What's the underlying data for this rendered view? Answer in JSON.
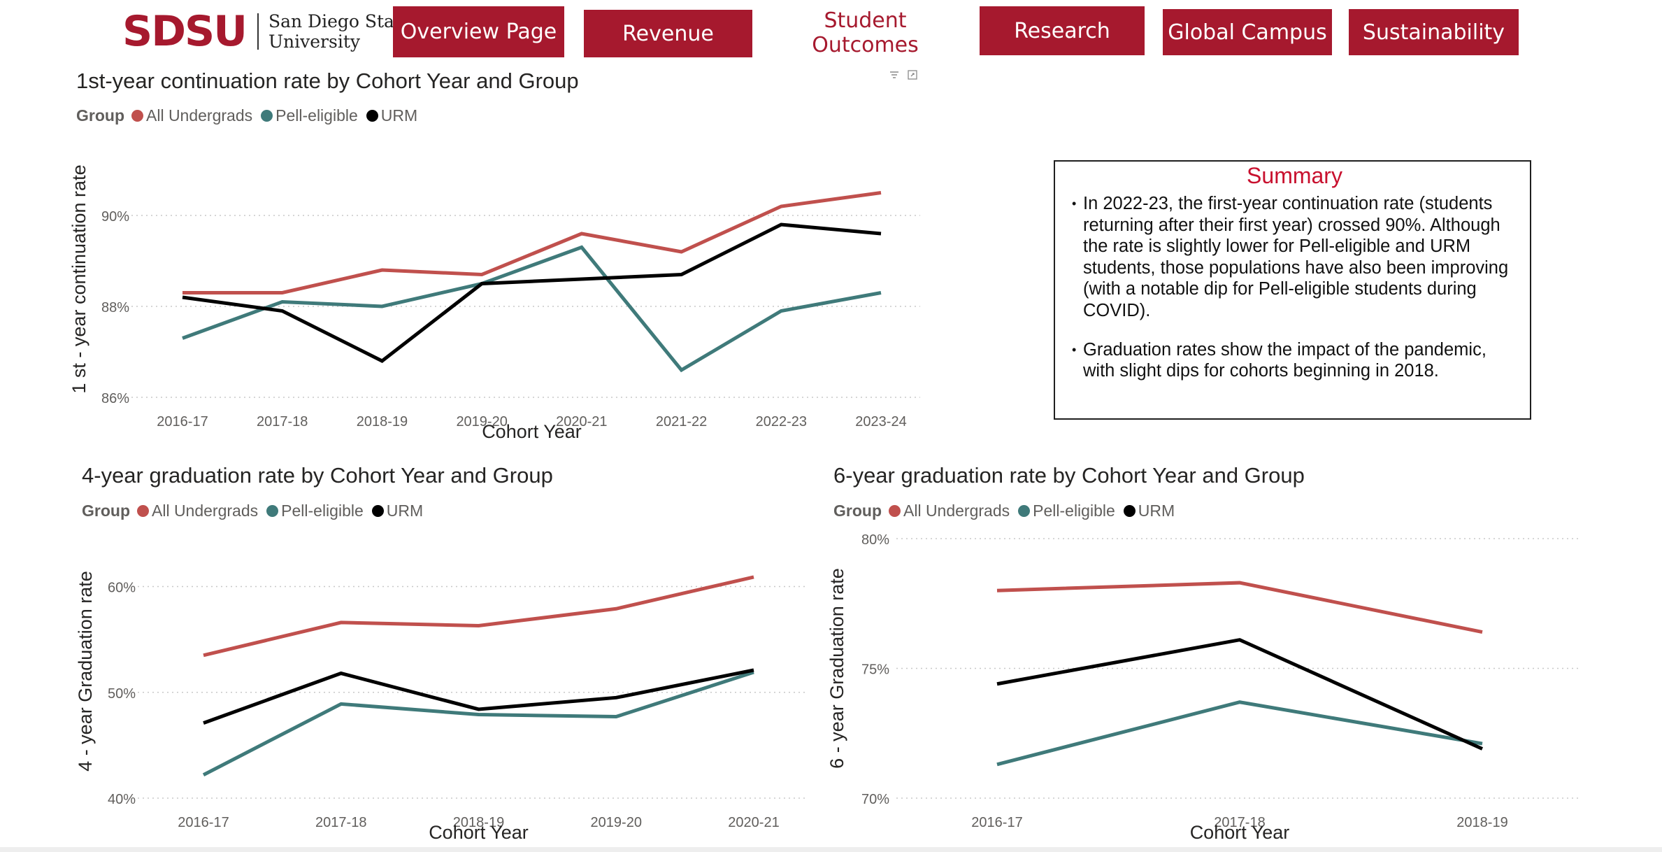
{
  "logo": {
    "mark": "SDSU",
    "line1": "San Diego State",
    "line2": "University"
  },
  "nav": [
    {
      "label": "Overview Page",
      "active": false
    },
    {
      "label": "Revenue",
      "active": false
    },
    {
      "label": "Student Outcomes",
      "active": true
    },
    {
      "label": "Research",
      "active": false
    },
    {
      "label": "Global Campus",
      "active": false
    },
    {
      "label": "Sustainability",
      "active": false
    }
  ],
  "colors": {
    "brand": "#A6192E",
    "all_undergrads": "#C0504D",
    "pell_eligible": "#3F7A7A",
    "urm": "#000000"
  },
  "legend": {
    "title": "Group",
    "items": [
      "All Undergrads",
      "Pell-eligible",
      "URM"
    ]
  },
  "icons": [
    "filter-icon",
    "focus-mode-icon"
  ],
  "summary": {
    "title": "Summary",
    "bullets": [
      "In 2022-23, the first-year continuation rate (students returning after their first year) crossed 90%. Although the rate is slightly lower for Pell-eligible and URM students, those populations have also been improving (with a notable dip for Pell-eligible students during COVID).",
      "Graduation rates show the impact of the pandemic, with slight dips for cohorts beginning in 2018."
    ]
  },
  "chart_data": [
    {
      "type": "line",
      "title": "1st-year continuation rate by Cohort Year and Group",
      "xlabel": "Cohort Year",
      "ylabel": "1 st - year continuation rate",
      "categories": [
        "2016-17",
        "2017-18",
        "2018-19",
        "2019-20",
        "2020-21",
        "2021-22",
        "2022-23",
        "2023-24"
      ],
      "ylim": [
        86,
        91.2
      ],
      "yticks": [
        86,
        88,
        90
      ],
      "tick_suffix": "%",
      "grid": true,
      "legend_position": "top-left",
      "series": [
        {
          "name": "All Undergrads",
          "values": [
            88.3,
            88.3,
            88.8,
            88.7,
            89.6,
            89.2,
            90.2,
            90.5
          ]
        },
        {
          "name": "Pell-eligible",
          "values": [
            87.3,
            88.1,
            88.0,
            88.5,
            89.3,
            86.6,
            87.9,
            88.3
          ]
        },
        {
          "name": "URM",
          "values": [
            88.2,
            87.9,
            86.8,
            88.5,
            88.6,
            88.7,
            89.8,
            89.6
          ]
        }
      ]
    },
    {
      "type": "line",
      "title": "4-year graduation rate by Cohort Year and Group",
      "xlabel": "Cohort Year",
      "ylabel": "4 - year Graduation rate",
      "categories": [
        "2016-17",
        "2017-18",
        "2018-19",
        "2019-20",
        "2020-21"
      ],
      "ylim": [
        40,
        64
      ],
      "yticks": [
        40,
        50,
        60
      ],
      "tick_suffix": "%",
      "grid": true,
      "legend_position": "top-left",
      "series": [
        {
          "name": "All Undergrads",
          "values": [
            53.5,
            56.6,
            56.3,
            57.9,
            60.9
          ]
        },
        {
          "name": "Pell-eligible",
          "values": [
            42.2,
            48.9,
            47.9,
            47.7,
            51.9
          ]
        },
        {
          "name": "URM",
          "values": [
            47.1,
            51.8,
            48.4,
            49.5,
            52.1
          ]
        }
      ]
    },
    {
      "type": "line",
      "title": "6-year graduation rate by Cohort Year and Group",
      "xlabel": "Cohort Year",
      "ylabel": "6 - year Graduation rate",
      "categories": [
        "2016-17",
        "2017-18",
        "2018-19"
      ],
      "ylim": [
        70,
        80
      ],
      "yticks": [
        70,
        75,
        80
      ],
      "tick_suffix": "%",
      "grid": true,
      "legend_position": "top-left",
      "series": [
        {
          "name": "All Undergrads",
          "values": [
            78.0,
            78.3,
            76.4
          ]
        },
        {
          "name": "Pell-eligible",
          "values": [
            71.3,
            73.7,
            72.1
          ]
        },
        {
          "name": "URM",
          "values": [
            74.4,
            76.1,
            71.9
          ]
        }
      ]
    }
  ]
}
